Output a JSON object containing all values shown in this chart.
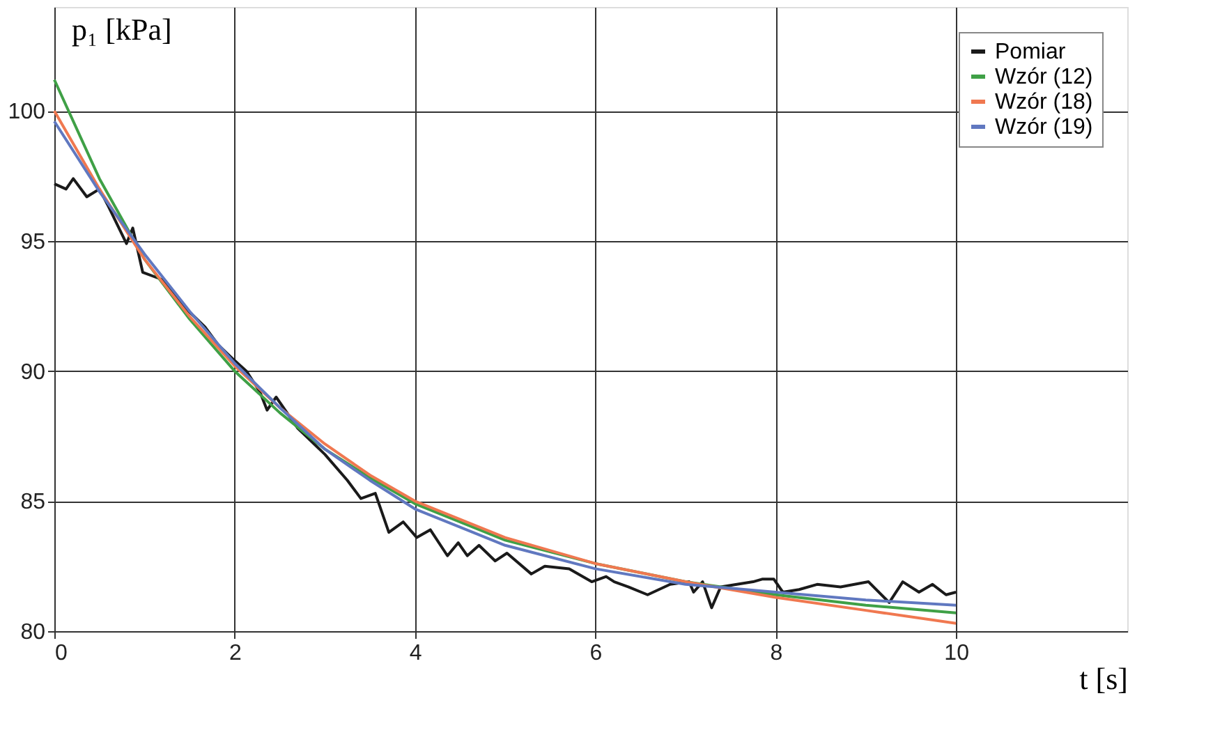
{
  "chart_data": {
    "type": "line",
    "xlabel": "t [s]",
    "ylabel": "p₁ [kPa]",
    "xlim": [
      0,
      11.9
    ],
    "ylim": [
      80,
      104
    ],
    "xticks": [
      0,
      2,
      4,
      6,
      8,
      10
    ],
    "yticks": [
      80,
      85,
      90,
      95,
      100
    ],
    "grid": true,
    "legend": "top right",
    "line_style": "solid",
    "series": [
      {
        "name": "Pomiar",
        "color": "#1a1a1a",
        "x": [
          0,
          0.13,
          0.21,
          0.36,
          0.5,
          0.59,
          0.8,
          0.87,
          0.98,
          1.21,
          1.46,
          1.67,
          1.82,
          1.97,
          2.13,
          2.28,
          2.36,
          2.46,
          2.7,
          3.0,
          3.25,
          3.4,
          3.56,
          3.71,
          3.87,
          4.02,
          4.17,
          4.36,
          4.48,
          4.58,
          4.71,
          4.89,
          5.02,
          5.29,
          5.44,
          5.71,
          5.96,
          6.12,
          6.21,
          6.37,
          6.58,
          6.83,
          7.04,
          7.09,
          7.19,
          7.29,
          7.39,
          7.75,
          7.85,
          7.98,
          8.08,
          8.26,
          8.46,
          8.72,
          9.03,
          9.26,
          9.41,
          9.59,
          9.74,
          9.89,
          10.0
        ],
        "values": [
          97.2,
          97.0,
          97.4,
          96.7,
          97.0,
          96.4,
          94.9,
          95.5,
          93.8,
          93.5,
          92.4,
          91.7,
          91.0,
          90.5,
          90.0,
          89.2,
          88.5,
          89.0,
          87.8,
          86.8,
          85.8,
          85.1,
          85.3,
          83.8,
          84.2,
          83.6,
          83.9,
          82.9,
          83.4,
          82.9,
          83.3,
          82.7,
          83.0,
          82.2,
          82.5,
          82.4,
          81.9,
          82.1,
          81.9,
          81.7,
          81.4,
          81.8,
          81.9,
          81.5,
          81.9,
          80.9,
          81.7,
          81.9,
          82.0,
          82.0,
          81.5,
          81.6,
          81.8,
          81.7,
          81.9,
          81.1,
          81.9,
          81.5,
          81.8,
          81.4,
          81.5
        ]
      },
      {
        "name": "Wzór (12)",
        "color": "#3fa046",
        "x": [
          0,
          0.5,
          1,
          1.5,
          2,
          2.5,
          3,
          3.5,
          4,
          5,
          6,
          7,
          8,
          9,
          10
        ],
        "values": [
          101.2,
          97.4,
          94.3,
          92.0,
          90.0,
          88.4,
          87.0,
          85.9,
          84.9,
          83.5,
          82.6,
          81.9,
          81.4,
          81.0,
          80.7
        ]
      },
      {
        "name": "Wzór (18)",
        "color": "#f07850",
        "x": [
          0,
          0.5,
          1,
          1.5,
          2,
          2.5,
          3,
          3.5,
          4,
          5,
          6,
          7,
          8,
          9,
          10
        ],
        "values": [
          100.0,
          97.0,
          94.3,
          92.1,
          90.2,
          88.6,
          87.2,
          86.0,
          85.0,
          83.6,
          82.6,
          81.9,
          81.3,
          80.8,
          80.3
        ]
      },
      {
        "name": "Wzór (19)",
        "color": "#6078c0",
        "x": [
          0,
          0.5,
          1,
          1.5,
          2,
          2.5,
          3,
          3.5,
          4,
          5,
          6,
          7,
          8,
          9,
          10
        ],
        "values": [
          99.6,
          96.9,
          94.5,
          92.3,
          90.3,
          88.6,
          87.0,
          85.8,
          84.7,
          83.3,
          82.4,
          81.8,
          81.5,
          81.2,
          81.0
        ]
      }
    ]
  }
}
